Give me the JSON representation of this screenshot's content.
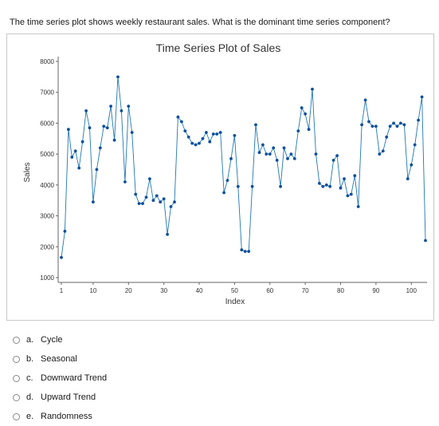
{
  "question": "The time series plot shows weekly restaurant sales. What is the dominant time series component?",
  "options": [
    {
      "letter": "a.",
      "text": "Cycle"
    },
    {
      "letter": "b.",
      "text": "Seasonal"
    },
    {
      "letter": "c.",
      "text": "Downward Trend"
    },
    {
      "letter": "d.",
      "text": "Upward Trend"
    },
    {
      "letter": "e.",
      "text": "Randomness"
    }
  ],
  "colors": {
    "series": "#1f77b4",
    "marker": "#0b4f9c"
  },
  "chart_data": {
    "type": "line",
    "title": "Time Series Plot of Sales",
    "xlabel": "Index",
    "ylabel": "Sales",
    "xlim": [
      1,
      104
    ],
    "ylim": [
      1000,
      8000
    ],
    "x_ticks": [
      1,
      10,
      20,
      30,
      40,
      50,
      60,
      70,
      80,
      90,
      100
    ],
    "y_ticks": [
      1000,
      2000,
      3000,
      4000,
      5000,
      6000,
      7000,
      8000
    ],
    "grid": false,
    "series": [
      {
        "values": [
          1650,
          2500,
          5800,
          4900,
          5100,
          4550,
          5400,
          6400,
          5850,
          3450,
          4500,
          5200,
          5900,
          5850,
          6550,
          5450,
          7500,
          6400,
          4100,
          6550,
          5700,
          3700,
          3400,
          3400,
          3600,
          4200,
          3500,
          3650,
          3450,
          3550,
          2400,
          3300,
          3450,
          6200,
          6050,
          5750,
          5550,
          5350,
          5300,
          5350,
          5500,
          5700,
          5400,
          5650,
          5650,
          5700,
          3750,
          4150,
          4850,
          5600,
          3950,
          1900,
          1850,
          1850,
          3950,
          5950,
          5050,
          5300,
          5000,
          5000,
          5200,
          4800,
          3950,
          5200,
          4850,
          5000,
          4850,
          5750,
          6500,
          6300,
          5800,
          7100,
          5000,
          4050,
          3950,
          4000,
          3950,
          4800,
          4950,
          3900,
          4200,
          3650,
          3700,
          4300,
          3300,
          5950,
          6750,
          6050,
          5900,
          5900,
          5000,
          5100,
          5550,
          5900,
          6000,
          5900,
          6000,
          5950,
          4200,
          4650,
          5300,
          6100,
          6850,
          2200
        ]
      }
    ]
  }
}
